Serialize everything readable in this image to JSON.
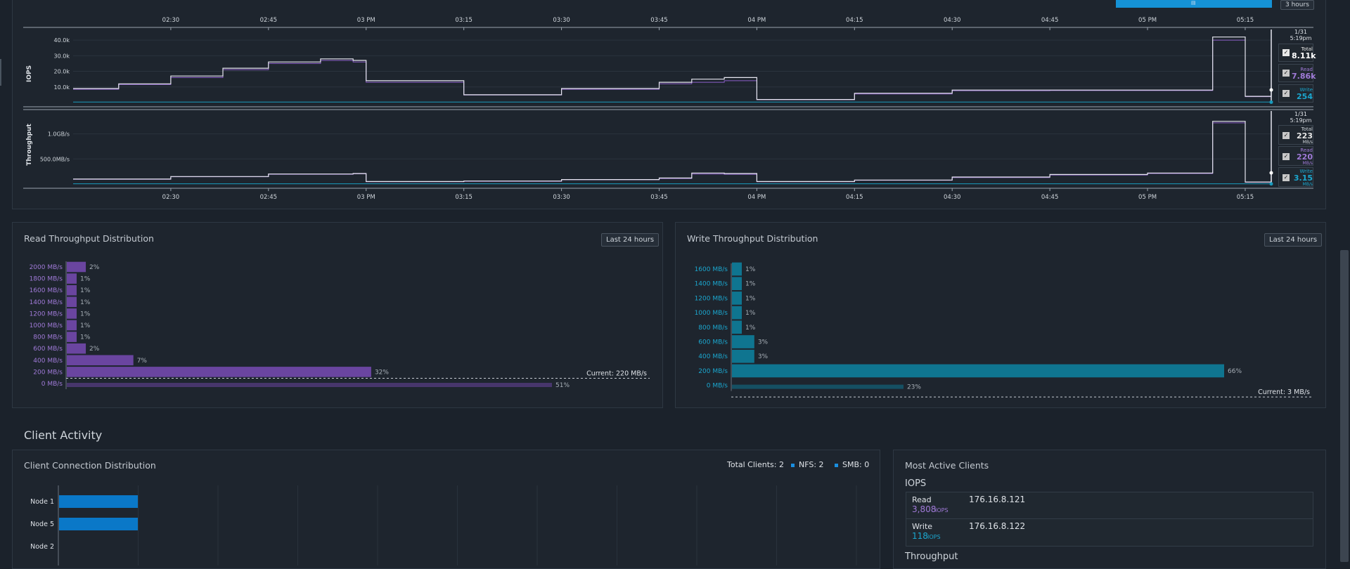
{
  "top": {
    "range_button": "3 hours",
    "time_ticks": [
      "02:30",
      "02:45",
      "03 PM",
      "03:15",
      "03:30",
      "03:45",
      "04 PM",
      "04:15",
      "04:30",
      "04:45",
      "05 PM",
      "05:15"
    ]
  },
  "iops": {
    "axis_label": "IOPS",
    "y_ticks": [
      "40.0k",
      "30.0k",
      "20.0k",
      "10.0k"
    ],
    "date": "1/31",
    "time": "5:19pm",
    "total_label": "Total",
    "total_value": "8.11k",
    "read_label": "Read",
    "read_value": "7.86k",
    "write_label": "Write",
    "write_value": "254"
  },
  "throughput": {
    "axis_label": "Throughput",
    "y_ticks": [
      "1.0GB/s",
      "500.0MB/s"
    ],
    "date": "1/31",
    "time": "5:19pm",
    "total_label": "Total",
    "total_value": "223",
    "total_unit": "MB/s",
    "read_label": "Read",
    "read_value": "220",
    "read_unit": "MB/s",
    "write_label": "Write",
    "write_value": "3.15",
    "write_unit": "MB/s"
  },
  "read_dist": {
    "title": "Read Throughput Distribution",
    "range_button": "Last 24 hours",
    "current": "Current: 220 MB/s",
    "buckets": [
      {
        "label": "2000 MB/s",
        "pct": "2%"
      },
      {
        "label": "1800 MB/s",
        "pct": "1%"
      },
      {
        "label": "1600 MB/s",
        "pct": "1%"
      },
      {
        "label": "1400 MB/s",
        "pct": "1%"
      },
      {
        "label": "1200 MB/s",
        "pct": "1%"
      },
      {
        "label": "1000 MB/s",
        "pct": "1%"
      },
      {
        "label": "800 MB/s",
        "pct": "1%"
      },
      {
        "label": "600 MB/s",
        "pct": "2%"
      },
      {
        "label": "400 MB/s",
        "pct": "7%"
      },
      {
        "label": "200 MB/s",
        "pct": "32%"
      },
      {
        "label": "0 MB/s",
        "pct": "51%"
      }
    ]
  },
  "write_dist": {
    "title": "Write Throughput Distribution",
    "range_button": "Last 24 hours",
    "current": "Current: 3 MB/s",
    "buckets": [
      {
        "label": "1600 MB/s",
        "pct": "1%"
      },
      {
        "label": "1400 MB/s",
        "pct": "1%"
      },
      {
        "label": "1200 MB/s",
        "pct": "1%"
      },
      {
        "label": "1000 MB/s",
        "pct": "1%"
      },
      {
        "label": "800 MB/s",
        "pct": "1%"
      },
      {
        "label": "600 MB/s",
        "pct": "3%"
      },
      {
        "label": "400 MB/s",
        "pct": "3%"
      },
      {
        "label": "200 MB/s",
        "pct": "66%"
      },
      {
        "label": "0 MB/s",
        "pct": "23%"
      }
    ]
  },
  "client_activity": {
    "section_title": "Client Activity",
    "conn_title": "Client Connection Distribution",
    "total_clients": "Total Clients: 2",
    "nfs": "NFS: 2",
    "smb": "SMB: 0",
    "nodes": [
      "Node 1",
      "Node 5",
      "Node 2"
    ],
    "mac_title": "Most Active Clients",
    "iops_heading": "IOPS",
    "throughput_heading": "Throughput",
    "rows": [
      {
        "label": "Read",
        "value": "3,808",
        "unit": "IOPS",
        "ip": "176.16.8.121"
      },
      {
        "label": "Write",
        "value": "118",
        "unit": "IOPS",
        "ip": "176.16.8.122"
      }
    ]
  },
  "colors": {
    "read": "#8c5fc8",
    "write": "#1a9bbd",
    "total": "#e6e6f0",
    "node_bar": "#0a78c8"
  },
  "chart_data": [
    {
      "type": "line",
      "title": "",
      "ylabel": "IOPS",
      "ylim": [
        0,
        45000
      ],
      "x": [
        "02:15",
        "02:22",
        "02:30",
        "02:38",
        "02:45",
        "02:53",
        "02:58",
        "03:00",
        "03:15",
        "03:30",
        "03:45",
        "03:50",
        "03:55",
        "04:00",
        "04:15",
        "04:30",
        "04:45",
        "05:00",
        "05:05",
        "05:10",
        "05:15",
        "05:19"
      ],
      "series": [
        {
          "name": "Total",
          "values": [
            9000,
            12000,
            17000,
            22000,
            26000,
            28000,
            27000,
            14000,
            5000,
            9000,
            13000,
            15000,
            16000,
            2000,
            6000,
            8000,
            8000,
            8000,
            8000,
            42000,
            4000,
            8110
          ]
        },
        {
          "name": "Read",
          "values": [
            8500,
            11500,
            16000,
            21000,
            25000,
            27000,
            26000,
            13000,
            4800,
            8500,
            12000,
            13000,
            14000,
            1800,
            5500,
            7600,
            7700,
            7700,
            7700,
            40000,
            3800,
            7860
          ]
        },
        {
          "name": "Write",
          "values": [
            300,
            300,
            300,
            300,
            300,
            300,
            300,
            300,
            300,
            300,
            300,
            300,
            300,
            300,
            300,
            300,
            300,
            300,
            300,
            300,
            300,
            254
          ]
        }
      ]
    },
    {
      "type": "line",
      "title": "",
      "ylabel": "Throughput",
      "ylim": [
        0,
        1400
      ],
      "x": [
        "02:15",
        "02:30",
        "02:45",
        "02:58",
        "03:00",
        "03:15",
        "03:30",
        "03:45",
        "03:50",
        "03:55",
        "04:00",
        "04:15",
        "04:30",
        "04:45",
        "05:00",
        "05:10",
        "05:15",
        "05:19"
      ],
      "series": [
        {
          "name": "Total",
          "values": [
            100,
            150,
            200,
            210,
            50,
            60,
            90,
            120,
            220,
            210,
            50,
            80,
            140,
            190,
            220,
            1250,
            40,
            223
          ]
        },
        {
          "name": "Read",
          "values": [
            95,
            145,
            195,
            205,
            45,
            55,
            85,
            110,
            200,
            195,
            45,
            75,
            130,
            180,
            210,
            1220,
            35,
            220
          ]
        },
        {
          "name": "Write",
          "values": [
            5,
            5,
            5,
            5,
            5,
            5,
            5,
            5,
            5,
            5,
            5,
            5,
            5,
            5,
            5,
            5,
            5,
            3.15
          ]
        }
      ]
    },
    {
      "type": "bar",
      "title": "Read Throughput Distribution",
      "categories": [
        "0 MB/s",
        "200 MB/s",
        "400 MB/s",
        "600 MB/s",
        "800 MB/s",
        "1000 MB/s",
        "1200 MB/s",
        "1400 MB/s",
        "1600 MB/s",
        "1800 MB/s",
        "2000 MB/s"
      ],
      "values": [
        51,
        32,
        7,
        2,
        1,
        1,
        1,
        1,
        1,
        1,
        2
      ]
    },
    {
      "type": "bar",
      "title": "Write Throughput Distribution",
      "categories": [
        "0 MB/s",
        "200 MB/s",
        "400 MB/s",
        "600 MB/s",
        "800 MB/s",
        "1000 MB/s",
        "1200 MB/s",
        "1400 MB/s",
        "1600 MB/s"
      ],
      "values": [
        23,
        66,
        3,
        3,
        1,
        1,
        1,
        1,
        1
      ]
    },
    {
      "type": "bar",
      "title": "Client Connection Distribution",
      "categories": [
        "Node 1",
        "Node 5",
        "Node 2"
      ],
      "values": [
        1,
        1,
        0
      ]
    }
  ]
}
